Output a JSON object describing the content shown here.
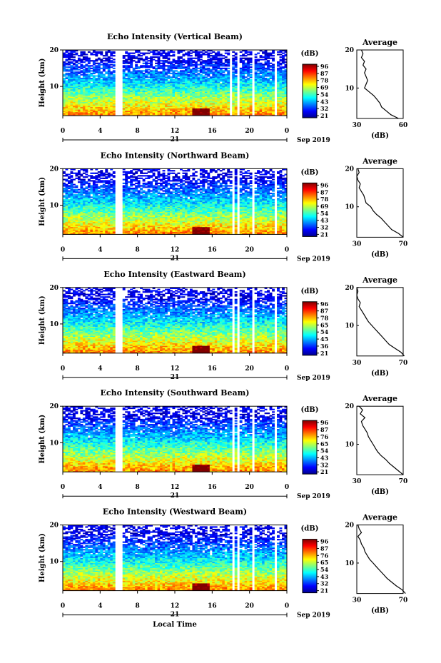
{
  "figure": {
    "xlabel": "Local Time",
    "date_label": "Sep 2019",
    "day_label": "21"
  },
  "chart_data": [
    {
      "type": "heatmap",
      "title": "Echo Intensity (Vertical Beam)",
      "ylabel": "Height (km)",
      "xlabel": "Local Time",
      "x_ticks": [
        "0",
        "4",
        "8",
        "12",
        "16",
        "20",
        "0"
      ],
      "y_ticks": [
        "10",
        "20"
      ],
      "xlim": [
        0,
        24
      ],
      "ylim": [
        2,
        20
      ],
      "colorbar": {
        "label": "(dB)",
        "ticks": [
          "96",
          "87",
          "78",
          "69",
          "54",
          "43",
          "32",
          "21"
        ],
        "range": [
          21,
          96
        ]
      },
      "data_gaps_hours": [
        [
          5.7,
          6.4
        ],
        [
          18.0,
          18.2
        ],
        [
          18.6,
          18.8
        ],
        [
          20.3,
          20.6
        ],
        [
          22.7,
          22.9
        ]
      ],
      "average_profile": {
        "title": "Average",
        "xlabel": "(dB)",
        "x_ticks": [
          "30",
          "60"
        ],
        "xlim": [
          30,
          60
        ],
        "y_ticks": [
          "10",
          "20"
        ],
        "height": [
          2,
          3,
          4,
          5,
          6,
          7,
          8,
          9,
          10,
          11,
          12,
          13,
          14,
          15,
          16,
          17,
          18,
          19,
          20
        ],
        "value": [
          57,
          52,
          49,
          46,
          45,
          43,
          41,
          38,
          35,
          36,
          37,
          36,
          35,
          36,
          34,
          35,
          33,
          34,
          33
        ]
      }
    },
    {
      "type": "heatmap",
      "title": "Echo Intensity (Northward Beam)",
      "ylabel": "Height (km)",
      "xlabel": "Local Time",
      "x_ticks": [
        "0",
        "4",
        "8",
        "12",
        "16",
        "20",
        "0"
      ],
      "y_ticks": [
        "10",
        "20"
      ],
      "xlim": [
        0,
        24
      ],
      "ylim": [
        2,
        20
      ],
      "colorbar": {
        "label": "(dB)",
        "ticks": [
          "96",
          "87",
          "78",
          "69",
          "54",
          "43",
          "32",
          "21"
        ],
        "range": [
          21,
          96
        ]
      },
      "data_gaps_hours": [
        [
          5.7,
          6.4
        ],
        [
          18.1,
          18.3
        ],
        [
          18.8,
          19.0
        ],
        [
          20.3,
          20.6
        ],
        [
          22.6,
          22.8
        ]
      ],
      "average_profile": {
        "title": "Average",
        "xlabel": "(dB)",
        "x_ticks": [
          "30",
          "70"
        ],
        "xlim": [
          30,
          70
        ],
        "y_ticks": [
          "10",
          "20"
        ],
        "height": [
          2,
          3,
          4,
          5,
          6,
          7,
          8,
          9,
          10,
          11,
          12,
          13,
          14,
          15,
          16,
          17,
          18,
          19,
          20
        ],
        "value": [
          70,
          66,
          60,
          57,
          54,
          51,
          47,
          44,
          42,
          38,
          37,
          36,
          34,
          32,
          33,
          31,
          30,
          32,
          31
        ]
      }
    },
    {
      "type": "heatmap",
      "title": "Echo Intensity (Eastward Beam)",
      "ylabel": "Height (km)",
      "xlabel": "Local Time",
      "x_ticks": [
        "0",
        "4",
        "8",
        "12",
        "16",
        "20",
        "0"
      ],
      "y_ticks": [
        "10",
        "20"
      ],
      "xlim": [
        0,
        24
      ],
      "ylim": [
        2,
        20
      ],
      "colorbar": {
        "label": "(dB)",
        "ticks": [
          "96",
          "87",
          "78",
          "65",
          "54",
          "45",
          "36",
          "21"
        ],
        "range": [
          21,
          96
        ]
      },
      "data_gaps_hours": [
        [
          5.7,
          6.4
        ],
        [
          18.1,
          18.3
        ],
        [
          18.6,
          18.8
        ],
        [
          20.3,
          20.6
        ],
        [
          22.7,
          22.9
        ]
      ],
      "average_profile": {
        "title": "Average",
        "xlabel": "(dB)",
        "x_ticks": [
          "30",
          "70"
        ],
        "xlim": [
          30,
          70
        ],
        "y_ticks": [
          "10",
          "20"
        ],
        "height": [
          2,
          3,
          4,
          5,
          6,
          7,
          8,
          9,
          10,
          11,
          12,
          13,
          14,
          15,
          16,
          17,
          18,
          19,
          20
        ],
        "value": [
          71,
          68,
          63,
          58,
          55,
          52,
          49,
          46,
          43,
          40,
          38,
          36,
          34,
          32,
          33,
          31,
          30,
          31,
          30
        ]
      }
    },
    {
      "type": "heatmap",
      "title": "Echo Intensity (Southward Beam)",
      "ylabel": "Height (km)",
      "xlabel": "Local Time",
      "x_ticks": [
        "0",
        "4",
        "8",
        "12",
        "16",
        "20",
        "0"
      ],
      "y_ticks": [
        "10",
        "20"
      ],
      "xlim": [
        0,
        24
      ],
      "ylim": [
        2,
        20
      ],
      "colorbar": {
        "label": "(dB)",
        "ticks": [
          "96",
          "87",
          "76",
          "65",
          "54",
          "43",
          "32",
          "21"
        ],
        "range": [
          21,
          96
        ]
      },
      "data_gaps_hours": [
        [
          5.7,
          6.4
        ],
        [
          18.1,
          18.3
        ],
        [
          18.8,
          19.0
        ],
        [
          20.3,
          20.6
        ],
        [
          22.7,
          22.9
        ]
      ],
      "average_profile": {
        "title": "Average",
        "xlabel": "(dB)",
        "x_ticks": [
          "30",
          "70"
        ],
        "xlim": [
          30,
          70
        ],
        "y_ticks": [
          "10",
          "20"
        ],
        "height": [
          2,
          3,
          4,
          5,
          6,
          7,
          8,
          9,
          10,
          11,
          12,
          13,
          14,
          15,
          16,
          17,
          18,
          19,
          20
        ],
        "value": [
          70,
          66,
          62,
          58,
          55,
          51,
          48,
          46,
          44,
          42,
          40,
          39,
          37,
          35,
          34,
          37,
          33,
          35,
          32
        ]
      }
    },
    {
      "type": "heatmap",
      "title": "Echo Intensity (Westward Beam)",
      "ylabel": "Height (km)",
      "xlabel": "Local Time",
      "x_ticks": [
        "0",
        "4",
        "8",
        "12",
        "16",
        "20",
        "0"
      ],
      "y_ticks": [
        "10",
        "20"
      ],
      "xlim": [
        0,
        24
      ],
      "ylim": [
        2,
        20
      ],
      "colorbar": {
        "label": "(dB)",
        "ticks": [
          "96",
          "87",
          "76",
          "65",
          "54",
          "43",
          "32",
          "21"
        ],
        "range": [
          21,
          96
        ]
      },
      "data_gaps_hours": [
        [
          5.7,
          6.4
        ],
        [
          18.1,
          18.3
        ],
        [
          18.8,
          19.0
        ],
        [
          20.3,
          20.6
        ],
        [
          22.7,
          22.9
        ]
      ],
      "average_profile": {
        "title": "Average",
        "xlabel": "(dB)",
        "x_ticks": [
          "30",
          "70"
        ],
        "xlim": [
          30,
          70
        ],
        "y_ticks": [
          "10",
          "20"
        ],
        "height": [
          2,
          3,
          4,
          5,
          6,
          7,
          8,
          9,
          10,
          11,
          12,
          13,
          14,
          15,
          16,
          17,
          18,
          19,
          20
        ],
        "value": [
          72,
          69,
          64,
          60,
          56,
          53,
          50,
          47,
          44,
          41,
          39,
          37,
          36,
          34,
          33,
          31,
          34,
          32,
          31
        ]
      }
    }
  ]
}
